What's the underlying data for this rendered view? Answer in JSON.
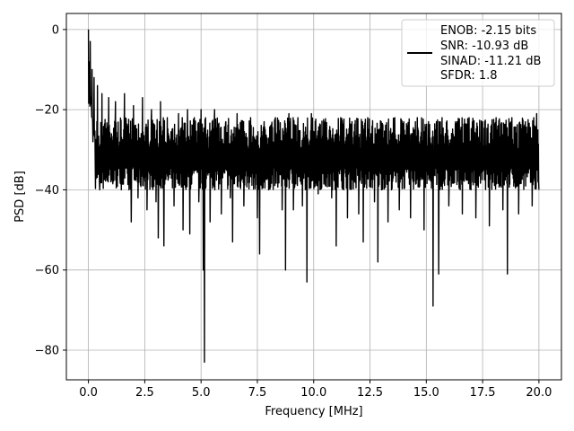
{
  "chart_data": {
    "type": "line",
    "title": "",
    "xlabel": "Frequency [MHz]",
    "ylabel": "PSD [dB]",
    "xlim": [
      -0.98,
      21.0
    ],
    "ylim": [
      -87.4,
      4.0
    ],
    "xticks": [
      0.0,
      2.5,
      5.0,
      7.5,
      10.0,
      12.5,
      15.0,
      17.5,
      20.0
    ],
    "xtick_labels": [
      "0.0",
      "2.5",
      "5.0",
      "7.5",
      "10.0",
      "12.5",
      "15.0",
      "17.5",
      "20.0"
    ],
    "yticks": [
      0,
      -20,
      -40,
      -60,
      -80
    ],
    "ytick_labels": [
      "0",
      "−20",
      "−40",
      "−60",
      "−80"
    ],
    "grid": true,
    "legend_position": "top-right",
    "series": [
      {
        "color": "#000000",
        "legend_lines": [
          "ENOB: -2.15 bits",
          "SNR: -10.93 dB",
          "SINAD: -11.21 dB",
          "SFDR: 1.8"
        ],
        "points": [
          [
            0.0,
            0.0
          ],
          [
            0.02,
            -8
          ],
          [
            0.05,
            -15
          ],
          [
            0.08,
            -3
          ],
          [
            0.12,
            -18
          ],
          [
            0.16,
            -10
          ],
          [
            0.2,
            -28
          ],
          [
            0.25,
            -12
          ],
          [
            0.3,
            -33
          ],
          [
            0.4,
            -14
          ],
          [
            0.5,
            -40
          ],
          [
            0.6,
            -16
          ],
          [
            0.75,
            -35
          ],
          [
            0.9,
            -17
          ],
          [
            1.0,
            -38
          ],
          [
            1.2,
            -18
          ],
          [
            1.4,
            -37
          ],
          [
            1.6,
            -16
          ],
          [
            1.8,
            -40
          ],
          [
            1.9,
            -48
          ],
          [
            2.0,
            -19
          ],
          [
            2.2,
            -42
          ],
          [
            2.4,
            -17
          ],
          [
            2.6,
            -45
          ],
          [
            2.8,
            -20
          ],
          [
            3.0,
            -43
          ],
          [
            3.1,
            -52
          ],
          [
            3.2,
            -18
          ],
          [
            3.35,
            -54
          ],
          [
            3.5,
            -22
          ],
          [
            3.8,
            -44
          ],
          [
            4.0,
            -21
          ],
          [
            4.2,
            -50
          ],
          [
            4.4,
            -20
          ],
          [
            4.5,
            -51
          ],
          [
            4.7,
            -22
          ],
          [
            4.9,
            -43
          ],
          [
            5.0,
            -20
          ],
          [
            5.1,
            -60
          ],
          [
            5.15,
            -83
          ],
          [
            5.2,
            -22
          ],
          [
            5.4,
            -48
          ],
          [
            5.6,
            -20
          ],
          [
            5.9,
            -46
          ],
          [
            6.1,
            -23
          ],
          [
            6.3,
            -42
          ],
          [
            6.4,
            -53
          ],
          [
            6.6,
            -21
          ],
          [
            6.9,
            -44
          ],
          [
            7.2,
            -22
          ],
          [
            7.5,
            -47
          ],
          [
            7.6,
            -56
          ],
          [
            7.8,
            -23
          ],
          [
            8.0,
            -40
          ],
          [
            8.3,
            -22
          ],
          [
            8.6,
            -45
          ],
          [
            8.75,
            -60
          ],
          [
            8.9,
            -21
          ],
          [
            9.1,
            -45
          ],
          [
            9.3,
            -22
          ],
          [
            9.5,
            -44
          ],
          [
            9.7,
            -63
          ],
          [
            9.9,
            -21
          ],
          [
            10.2,
            -41
          ],
          [
            10.5,
            -23
          ],
          [
            10.8,
            -42
          ],
          [
            11.0,
            -54
          ],
          [
            11.2,
            -22
          ],
          [
            11.5,
            -47
          ],
          [
            11.7,
            -23
          ],
          [
            12.0,
            -46
          ],
          [
            12.2,
            -53
          ],
          [
            12.4,
            -22
          ],
          [
            12.7,
            -43
          ],
          [
            12.85,
            -58
          ],
          [
            13.0,
            -23
          ],
          [
            13.3,
            -48
          ],
          [
            13.6,
            -22
          ],
          [
            13.8,
            -45
          ],
          [
            14.0,
            -23
          ],
          [
            14.3,
            -47
          ],
          [
            14.6,
            -22
          ],
          [
            14.9,
            -50
          ],
          [
            15.1,
            -23
          ],
          [
            15.3,
            -69
          ],
          [
            15.45,
            -23
          ],
          [
            15.55,
            -61
          ],
          [
            15.7,
            -22
          ],
          [
            16.0,
            -44
          ],
          [
            16.3,
            -23
          ],
          [
            16.6,
            -46
          ],
          [
            16.9,
            -22
          ],
          [
            17.2,
            -47
          ],
          [
            17.5,
            -23
          ],
          [
            17.8,
            -49
          ],
          [
            18.1,
            -22
          ],
          [
            18.4,
            -45
          ],
          [
            18.6,
            -61
          ],
          [
            18.8,
            -22
          ],
          [
            19.1,
            -46
          ],
          [
            19.4,
            -23
          ],
          [
            19.7,
            -44
          ],
          [
            19.9,
            -21
          ],
          [
            20.0,
            -40
          ]
        ]
      }
    ]
  }
}
